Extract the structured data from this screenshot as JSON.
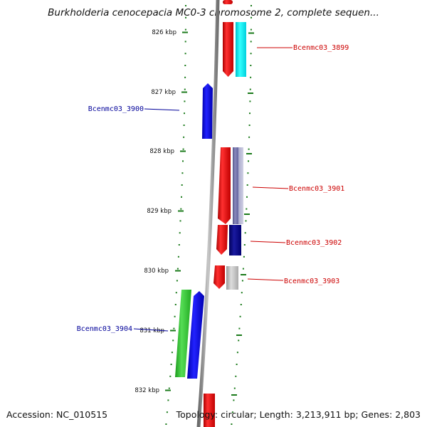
{
  "header": {
    "title": "Burkholderia cenocepacia MC0-3 chromosome 2, complete sequen..."
  },
  "footer": {
    "accession": "Accession: NC_010515",
    "topology": "Topology: circular; Length: 3,213,911 bp; Genes: 2,803"
  },
  "ticks": [
    "826 kbp",
    "827 kbp",
    "828 kbp",
    "829 kbp",
    "830 kbp",
    "831 kbp",
    "832 kbp"
  ],
  "genes": [
    {
      "label": "Bcenmc03_3899",
      "strand": "forward",
      "color": "#cc0000"
    },
    {
      "label": "Bcenmc03_3900",
      "strand": "reverse",
      "color": "#000099"
    },
    {
      "label": "Bcenmc03_3901",
      "strand": "forward",
      "color": "#cc0000"
    },
    {
      "label": "Bcenmc03_3902",
      "strand": "forward",
      "color": "#cc0000"
    },
    {
      "label": "Bcenmc03_3903",
      "strand": "forward",
      "color": "#cc0000"
    },
    {
      "label": "Bcenmc03_3904",
      "strand": "reverse",
      "color": "#000099"
    }
  ],
  "colors": {
    "backbone": "#8c8c8c",
    "tick": "#1a7a1a",
    "forward_gene": "#ff0000",
    "reverse_gene": "#0000ee",
    "cog_cyan": "#00e5ee",
    "cog_lavender": "#7777aa",
    "cog_navy": "#000080",
    "cog_gray": "#b0b0b0",
    "cog_green": "#33bb33"
  }
}
